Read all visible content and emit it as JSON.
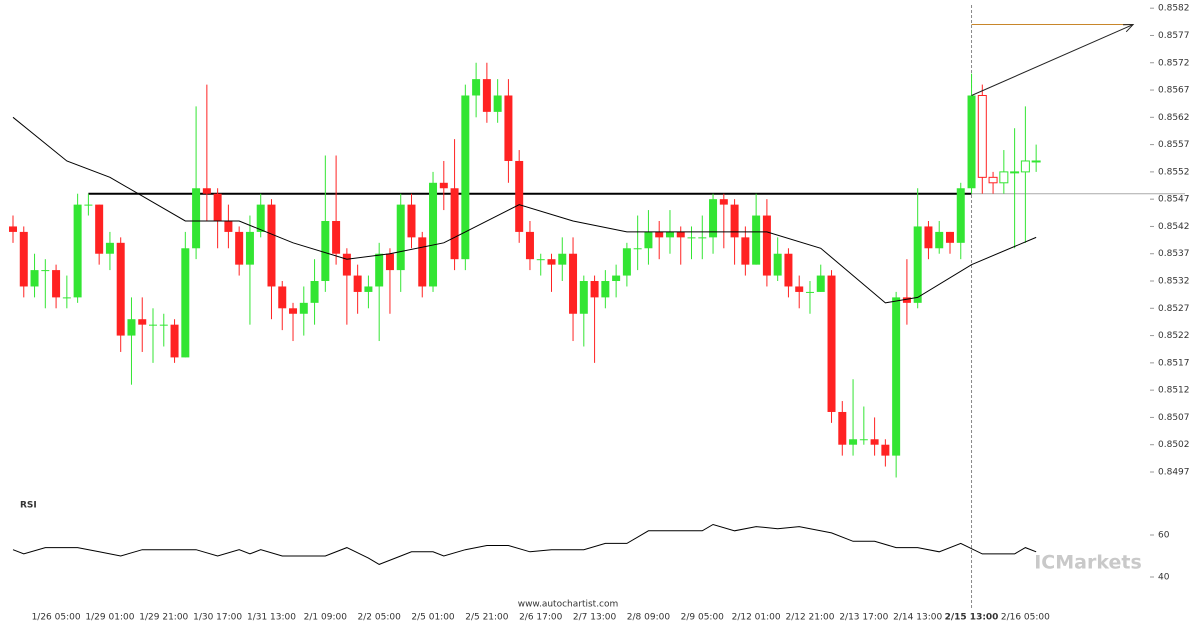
{
  "chart_data": {
    "type": "candlestick",
    "categories": [
      null,
      null,
      null,
      null,
      "1/26 05:00",
      null,
      null,
      null,
      null,
      "1/29 01:00",
      null,
      null,
      null,
      null,
      "1/29 21:00",
      null,
      null,
      null,
      null,
      "1/30 17:00",
      null,
      null,
      null,
      null,
      "1/31 13:00",
      null,
      null,
      null,
      null,
      "2/1 09:00",
      null,
      null,
      null,
      null,
      "2/2 05:00",
      null,
      null,
      null,
      null,
      "2/5 01:00",
      null,
      null,
      null,
      null,
      "2/5 21:00",
      null,
      null,
      null,
      null,
      "2/6 17:00",
      null,
      null,
      null,
      null,
      "2/7 13:00",
      null,
      null,
      null,
      null,
      "2/8 09:00",
      null,
      null,
      null,
      null,
      "2/9 05:00",
      null,
      null,
      null,
      null,
      "2/12 01:00",
      null,
      null,
      null,
      null,
      "2/12 21:00",
      null,
      null,
      null,
      null,
      "2/13 17:00",
      null,
      null,
      null,
      null,
      "2/14 13:00",
      null,
      null,
      null,
      null,
      "2/15 13:00",
      null,
      null,
      null,
      null,
      "2/16 05:00",
      null
    ],
    "open": [
      0.8542,
      0.8541,
      0.8531,
      0.8534,
      0.8534,
      0.8529,
      0.8529,
      0.8546,
      0.8546,
      0.8537,
      0.8539,
      0.8522,
      0.8525,
      0.8524,
      0.8524,
      0.8524,
      0.8518,
      0.8538,
      0.8549,
      0.8548,
      0.8543,
      0.8541,
      0.8535,
      0.8541,
      0.8546,
      0.8531,
      0.8527,
      0.8526,
      0.8528,
      0.8532,
      0.8543,
      0.8537,
      0.8533,
      0.853,
      0.8531,
      0.8537,
      0.8534,
      0.8546,
      0.854,
      0.8531,
      0.855,
      0.8549,
      0.8536,
      0.8566,
      0.8569,
      0.8563,
      0.8566,
      0.8554,
      0.8541,
      0.8536,
      0.8536,
      0.8535,
      0.8537,
      0.8526,
      0.8532,
      0.8529,
      0.8532,
      0.8533,
      0.8538,
      0.8538,
      0.8541,
      0.854,
      0.8541,
      0.854,
      0.854,
      0.854,
      0.8547,
      0.8546,
      0.854,
      0.8535,
      0.8544,
      0.8533,
      0.8537,
      0.8531,
      0.853,
      0.853,
      0.8533,
      0.8508,
      0.8502,
      0.8503,
      0.8503,
      0.8502,
      0.85,
      0.8529,
      0.8528,
      0.8542,
      0.8538,
      0.8541,
      0.8539,
      0.8549,
      0.8566,
      0.8551,
      0.855,
      0.8552,
      0.8552,
      0.8554
    ],
    "high": [
      0.8544,
      0.8542,
      0.8537,
      0.8536,
      0.8535,
      0.8533,
      0.8548,
      0.8548,
      0.8546,
      0.8541,
      0.854,
      0.8529,
      0.8529,
      0.8527,
      0.8526,
      0.8525,
      0.8541,
      0.8564,
      0.8568,
      0.8549,
      0.8546,
      0.8542,
      0.8544,
      0.8548,
      0.8547,
      0.8532,
      0.8528,
      0.8531,
      0.8536,
      0.8555,
      0.8555,
      0.8538,
      0.8535,
      0.8533,
      0.8539,
      0.8538,
      0.8548,
      0.8548,
      0.8541,
      0.8552,
      0.8554,
      0.8558,
      0.8568,
      0.8572,
      0.8572,
      0.8569,
      0.8569,
      0.8556,
      0.8543,
      0.8537,
      0.8537,
      0.854,
      0.854,
      0.8533,
      0.8533,
      0.8534,
      0.8535,
      0.8539,
      0.8544,
      0.8545,
      0.8543,
      0.8545,
      0.8542,
      0.8542,
      0.8544,
      0.8548,
      0.8548,
      0.8547,
      0.8542,
      0.8548,
      0.8547,
      0.854,
      0.8538,
      0.8533,
      0.8532,
      0.8535,
      0.8534,
      0.851,
      0.8514,
      0.8509,
      0.8507,
      0.8503,
      0.853,
      0.8536,
      0.8549,
      0.8543,
      0.8543,
      0.8541,
      0.855,
      0.857,
      0.8568,
      0.8552,
      0.8556,
      0.856,
      0.8564,
      0.8557
    ],
    "low": [
      0.8539,
      0.8529,
      0.8529,
      0.8527,
      0.8527,
      0.8527,
      0.8528,
      0.8544,
      0.8535,
      0.8534,
      0.8519,
      0.8513,
      0.8519,
      0.8517,
      0.852,
      0.8517,
      0.8518,
      0.8536,
      0.8543,
      0.8538,
      0.8538,
      0.8533,
      0.8524,
      0.854,
      0.8525,
      0.8523,
      0.8521,
      0.8522,
      0.8524,
      0.853,
      0.8535,
      0.8524,
      0.8526,
      0.8527,
      0.8521,
      0.8526,
      0.853,
      0.8538,
      0.8529,
      0.853,
      0.8545,
      0.8534,
      0.8534,
      0.8562,
      0.8561,
      0.8561,
      0.855,
      0.8539,
      0.8534,
      0.8533,
      0.853,
      0.8532,
      0.8521,
      0.852,
      0.8517,
      0.8527,
      0.8529,
      0.8531,
      0.8534,
      0.8535,
      0.8536,
      0.8537,
      0.8535,
      0.8536,
      0.8536,
      0.8537,
      0.8538,
      0.8535,
      0.8533,
      0.8535,
      0.8531,
      0.8532,
      0.8529,
      0.8527,
      0.8526,
      0.853,
      0.8506,
      0.85,
      0.85,
      0.8502,
      0.85,
      0.8498,
      0.8496,
      0.8524,
      0.8527,
      0.8536,
      0.8537,
      0.8537,
      0.8536,
      0.8548,
      0.8548,
      0.8548,
      0.8548,
      0.8538,
      0.8539,
      0.8552
    ],
    "close": [
      0.8541,
      0.8531,
      0.8534,
      0.8534,
      0.8529,
      0.8529,
      0.8546,
      0.8546,
      0.8537,
      0.8539,
      0.8522,
      0.8525,
      0.8524,
      0.8524,
      0.8524,
      0.8518,
      0.8538,
      0.8549,
      0.8548,
      0.8543,
      0.8541,
      0.8535,
      0.8541,
      0.8546,
      0.8531,
      0.8527,
      0.8526,
      0.8528,
      0.8532,
      0.8543,
      0.8537,
      0.8533,
      0.853,
      0.8531,
      0.8537,
      0.8534,
      0.8546,
      0.854,
      0.8531,
      0.855,
      0.8549,
      0.8536,
      0.8566,
      0.8569,
      0.8563,
      0.8566,
      0.8554,
      0.8541,
      0.8536,
      0.8536,
      0.8535,
      0.8537,
      0.8526,
      0.8532,
      0.8529,
      0.8532,
      0.8533,
      0.8538,
      0.8538,
      0.8541,
      0.854,
      0.8541,
      0.854,
      0.854,
      0.854,
      0.8547,
      0.8546,
      0.854,
      0.8535,
      0.8544,
      0.8533,
      0.8537,
      0.8531,
      0.853,
      0.853,
      0.8533,
      0.8508,
      0.8502,
      0.8503,
      0.8503,
      0.8502,
      0.85,
      0.8529,
      0.8528,
      0.8542,
      0.8538,
      0.8541,
      0.8539,
      0.8549,
      0.8566,
      0.8551,
      0.855,
      0.8552,
      0.8552,
      0.8554,
      0.8554
    ],
    "up_color": "#33e533",
    "down_color": "#ff2222",
    "highlight": 89,
    "ma": {
      "x": [
        0,
        5,
        9,
        16,
        21,
        26,
        31,
        35,
        40,
        42,
        47,
        52,
        57,
        64,
        70,
        75,
        81,
        84,
        89,
        95
      ],
      "values": [
        0.8562,
        0.8554,
        0.8551,
        0.8543,
        0.8543,
        0.8539,
        0.8536,
        0.8537,
        0.8539,
        0.8541,
        0.8546,
        0.8543,
        0.8541,
        0.8541,
        0.8541,
        0.8538,
        0.8528,
        0.8529,
        0.8535,
        0.854
      ]
    },
    "support": {
      "value": 0.8548,
      "from": 7,
      "to": 89
    },
    "target": {
      "value": 0.8579,
      "from": 89,
      "to": 104,
      "color": "#c8862a"
    },
    "ylim": [
      0.84937,
      0.85835
    ],
    "yticks": [
      0.8582,
      0.8577,
      0.8572,
      0.8567,
      0.8562,
      0.8557,
      0.8552,
      0.8547,
      0.8542,
      0.8537,
      0.8532,
      0.8527,
      0.8522,
      0.8517,
      0.8512,
      0.8507,
      0.8502,
      0.8497
    ],
    "rsi": {
      "label": "RSI",
      "x": [
        0,
        1,
        3,
        6,
        8,
        10,
        12,
        17,
        19,
        21,
        22,
        23,
        25,
        29,
        31,
        33,
        34,
        36,
        37,
        39,
        40,
        42,
        44,
        46,
        48,
        50,
        53,
        55,
        57,
        59,
        64,
        65,
        67,
        69,
        71,
        73,
        76,
        78,
        80,
        82,
        84,
        86,
        88,
        90,
        93,
        94,
        95
      ],
      "values": [
        53,
        51,
        54,
        54,
        52,
        50,
        53,
        53,
        50,
        53,
        51,
        53,
        50,
        50,
        54,
        49,
        46,
        50,
        52,
        52,
        50,
        53,
        55,
        55,
        52,
        53,
        53,
        56,
        56,
        62,
        62,
        65,
        62,
        64,
        63,
        64,
        61,
        57,
        57,
        54,
        54,
        52,
        56,
        51,
        51,
        54,
        52
      ],
      "ylim": [
        30,
        70
      ],
      "yticks": [
        40,
        60
      ]
    },
    "footer": "www.autochartist.com",
    "watermark": "ICMarkets"
  }
}
